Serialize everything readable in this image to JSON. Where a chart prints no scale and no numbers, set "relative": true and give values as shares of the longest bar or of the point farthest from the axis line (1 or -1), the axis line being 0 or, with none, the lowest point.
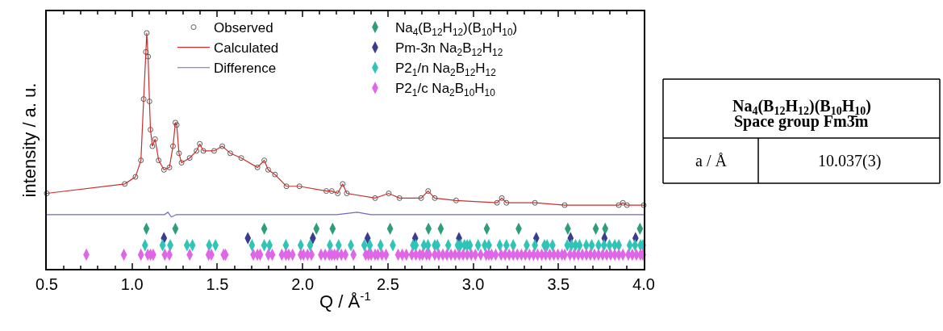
{
  "chart_data": [
    {
      "type": "line",
      "relative": true,
      "xlabel": "Q / Å$^{-1}$",
      "ylabel": "intensity / a. u.",
      "xlim": [
        0.5,
        4.0
      ],
      "xticks": [
        0.5,
        {
          "value": 1.0,
          "label": "1.0"
        },
        1.5,
        {
          "value": 2.0,
          "label": "2.0"
        },
        2.5,
        {
          "value": 3.0,
          "label": "3.0"
        },
        3.5,
        {
          "value": 4.0,
          "label": "4.0"
        }
      ],
      "legend": "top",
      "x": [
        0.5,
        0.957,
        1.02,
        1.052,
        1.068,
        1.081,
        1.086,
        1.094,
        1.102,
        1.108,
        1.119,
        1.135,
        1.156,
        1.187,
        1.219,
        1.24,
        1.254,
        1.262,
        1.275,
        1.29,
        1.338,
        1.378,
        1.397,
        1.418,
        1.481,
        1.529,
        1.576,
        1.64,
        1.735,
        1.775,
        1.798,
        1.838,
        1.905,
        1.981,
        2.139,
        2.171,
        2.206,
        2.235,
        2.259,
        2.425,
        2.505,
        2.568,
        2.695,
        2.736,
        2.775,
        2.9,
        3.14,
        3.168,
        3.195,
        3.362,
        3.536,
        3.854,
        3.878,
        3.902,
        4.0
      ],
      "series": [
        {
          "name": "Observed",
          "type": "scatter",
          "marker": "circle",
          "color": "#333333",
          "values": [
            0.32,
            0.36,
            0.39,
            0.46,
            0.72,
            0.92,
            1.0,
            0.9,
            0.71,
            0.59,
            0.52,
            0.55,
            0.46,
            0.42,
            0.43,
            0.52,
            0.62,
            0.61,
            0.49,
            0.45,
            0.47,
            0.5,
            0.53,
            0.5,
            0.5,
            0.52,
            0.49,
            0.47,
            0.43,
            0.46,
            0.42,
            0.4,
            0.35,
            0.35,
            0.33,
            0.33,
            0.32,
            0.36,
            0.32,
            0.3,
            0.32,
            0.3,
            0.3,
            0.33,
            0.3,
            0.29,
            0.28,
            0.3,
            0.28,
            0.28,
            0.27,
            0.27,
            0.28,
            0.27,
            0.27
          ]
        },
        {
          "name": "Calculated",
          "type": "line",
          "color": "#c8302e",
          "values": [
            0.32,
            0.36,
            0.39,
            0.46,
            0.72,
            0.92,
            1.0,
            0.9,
            0.71,
            0.59,
            0.52,
            0.55,
            0.46,
            0.42,
            0.43,
            0.52,
            0.62,
            0.61,
            0.49,
            0.45,
            0.47,
            0.5,
            0.53,
            0.5,
            0.5,
            0.52,
            0.49,
            0.47,
            0.43,
            0.46,
            0.42,
            0.4,
            0.35,
            0.35,
            0.33,
            0.33,
            0.32,
            0.36,
            0.32,
            0.3,
            0.32,
            0.3,
            0.3,
            0.33,
            0.3,
            0.29,
            0.28,
            0.3,
            0.28,
            0.28,
            0.27,
            0.27,
            0.28,
            0.27,
            0.27
          ]
        },
        {
          "name": "Difference",
          "type": "line",
          "color": "#6a6ac8",
          "x": [
            0.5,
            0.95,
            1.0,
            1.05,
            1.1,
            1.19,
            1.21,
            1.23,
            1.26,
            1.3,
            1.38,
            1.5,
            2.2,
            2.32,
            2.4,
            4.0
          ],
          "values": [
            0.23,
            0.23,
            0.23,
            0.23,
            0.23,
            0.23,
            0.24,
            0.22,
            0.23,
            0.23,
            0.23,
            0.23,
            0.23,
            0.24,
            0.23,
            0.23
          ]
        },
        {
          "name": "Na$_{4}$(B$_{12}$H$_{12}$)(B$_{10}$H$_{10}$)",
          "type": "scatter",
          "marker": "diamond",
          "color": "#2e9e78",
          "x": [
            1.084,
            1.254,
            1.775,
            2.081,
            2.176,
            2.513,
            2.738,
            2.81,
            3.08,
            3.267,
            3.555,
            3.719,
            3.774,
            3.978
          ],
          "values": [
            0.17,
            0.17,
            0.17,
            0.17,
            0.17,
            0.17,
            0.17,
            0.17,
            0.17,
            0.17,
            0.17,
            0.17,
            0.17,
            0.17
          ]
        },
        {
          "name": "Pm-3n Na$_{2}$B$_{12}$H$_{12}$",
          "type": "scatter",
          "marker": "diamond",
          "color": "#3b3b8f",
          "x": [
            1.187,
            1.679,
            2.06,
            2.381,
            2.66,
            2.917,
            3.37,
            3.571,
            3.77,
            3.952
          ],
          "values": [
            0.13,
            0.13,
            0.13,
            0.13,
            0.13,
            0.13,
            0.13,
            0.13,
            0.13,
            0.13
          ]
        },
        {
          "name": "P2$_{1}$/n Na$_{2}$B$_{12}$H$_{12}$",
          "type": "scatter",
          "marker": "diamond",
          "color": "#2ec4b6",
          "x": [
            1.076,
            1.179,
            1.224,
            1.322,
            1.354,
            1.452,
            1.489,
            1.703,
            1.775,
            1.806,
            1.902,
            1.989,
            2.044,
            2.16,
            2.211,
            2.283,
            2.362,
            2.394,
            2.457,
            2.529,
            2.648,
            2.663,
            2.711,
            2.735,
            2.775,
            2.79,
            2.854,
            2.91,
            2.925,
            2.949,
            2.965,
            2.981,
            3.029,
            3.068,
            3.092,
            3.156,
            3.195,
            3.235,
            3.314,
            3.362,
            3.418,
            3.433,
            3.465,
            3.552,
            3.576,
            3.6,
            3.624,
            3.663,
            3.695,
            3.735,
            3.767,
            3.799,
            3.83,
            3.854,
            3.918,
            3.949,
            3.981,
            3.995
          ],
          "values": [
            0.1,
            0.1,
            0.1,
            0.1,
            0.1,
            0.1,
            0.1,
            0.1,
            0.1,
            0.1,
            0.1,
            0.1,
            0.1,
            0.1,
            0.1,
            0.1,
            0.1,
            0.1,
            0.1,
            0.1,
            0.1,
            0.1,
            0.1,
            0.1,
            0.1,
            0.1,
            0.1,
            0.1,
            0.1,
            0.1,
            0.1,
            0.1,
            0.1,
            0.1,
            0.1,
            0.1,
            0.1,
            0.1,
            0.1,
            0.1,
            0.1,
            0.1,
            0.1,
            0.1,
            0.1,
            0.1,
            0.1,
            0.1,
            0.1,
            0.1,
            0.1,
            0.1,
            0.1,
            0.1,
            0.1,
            0.1,
            0.1,
            0.1
          ]
        },
        {
          "name": "P2$_{1}$/c Na$_{2}$B$_{10}$H$_{10}$",
          "type": "scatter",
          "marker": "diamond",
          "color": "#e066e8",
          "x": [
            0.732,
            0.952,
            1.052,
            1.092,
            1.108,
            1.124,
            1.192,
            1.219,
            1.338,
            1.449,
            1.465,
            1.537,
            1.548,
            1.711,
            1.735,
            1.751,
            1.799,
            1.822,
            1.878,
            1.902,
            1.918,
            1.941,
            1.989,
            2.005,
            2.029,
            2.052,
            2.108,
            2.132,
            2.156,
            2.171,
            2.187,
            2.203,
            2.227,
            2.251,
            2.298,
            2.37,
            2.386,
            2.402,
            2.425,
            2.441,
            2.465,
            2.489,
            2.56,
            2.584,
            2.608,
            2.64,
            2.664,
            2.687,
            2.703,
            2.727,
            2.743,
            2.775,
            2.798,
            2.822,
            2.846,
            2.87,
            2.894,
            2.918,
            2.941,
            2.965,
            2.989,
            3.013,
            3.044,
            3.076,
            3.092,
            3.108,
            3.132,
            3.164,
            3.187,
            3.211,
            3.235,
            3.259,
            3.283,
            3.306,
            3.33,
            3.354,
            3.378,
            3.402,
            3.425,
            3.449,
            3.473,
            3.497,
            3.521,
            3.537,
            3.568,
            3.592,
            3.616,
            3.64,
            3.664,
            3.687,
            3.711,
            3.735,
            3.759,
            3.783,
            3.806,
            3.83,
            3.854,
            3.878,
            3.91,
            3.933,
            3.957,
            3.981,
            3.995
          ],
          "values": [
            0.06,
            0.06,
            0.06,
            0.06,
            0.06,
            0.06,
            0.06,
            0.06,
            0.06,
            0.06,
            0.06,
            0.06,
            0.06,
            0.06,
            0.06,
            0.06,
            0.06,
            0.06,
            0.06,
            0.06,
            0.06,
            0.06,
            0.06,
            0.06,
            0.06,
            0.06,
            0.06,
            0.06,
            0.06,
            0.06,
            0.06,
            0.06,
            0.06,
            0.06,
            0.06,
            0.06,
            0.06,
            0.06,
            0.06,
            0.06,
            0.06,
            0.06,
            0.06,
            0.06,
            0.06,
            0.06,
            0.06,
            0.06,
            0.06,
            0.06,
            0.06,
            0.06,
            0.06,
            0.06,
            0.06,
            0.06,
            0.06,
            0.06,
            0.06,
            0.06,
            0.06,
            0.06,
            0.06,
            0.06,
            0.06,
            0.06,
            0.06,
            0.06,
            0.06,
            0.06,
            0.06,
            0.06,
            0.06,
            0.06,
            0.06,
            0.06,
            0.06,
            0.06,
            0.06,
            0.06,
            0.06,
            0.06,
            0.06,
            0.06,
            0.06,
            0.06,
            0.06,
            0.06,
            0.06,
            0.06,
            0.06,
            0.06,
            0.06,
            0.06,
            0.06,
            0.06,
            0.06,
            0.06,
            0.06,
            0.06,
            0.06,
            0.06,
            0.06
          ]
        }
      ]
    },
    {
      "type": "other",
      "title": "Na$_{4}$(B$_{12}$H$_{12}$)(B$_{10}$H$_{10}$)",
      "subtitle": "Space group Fm3̄m",
      "annotations": [
        "a / Å",
        "10.037(3)"
      ]
    }
  ]
}
